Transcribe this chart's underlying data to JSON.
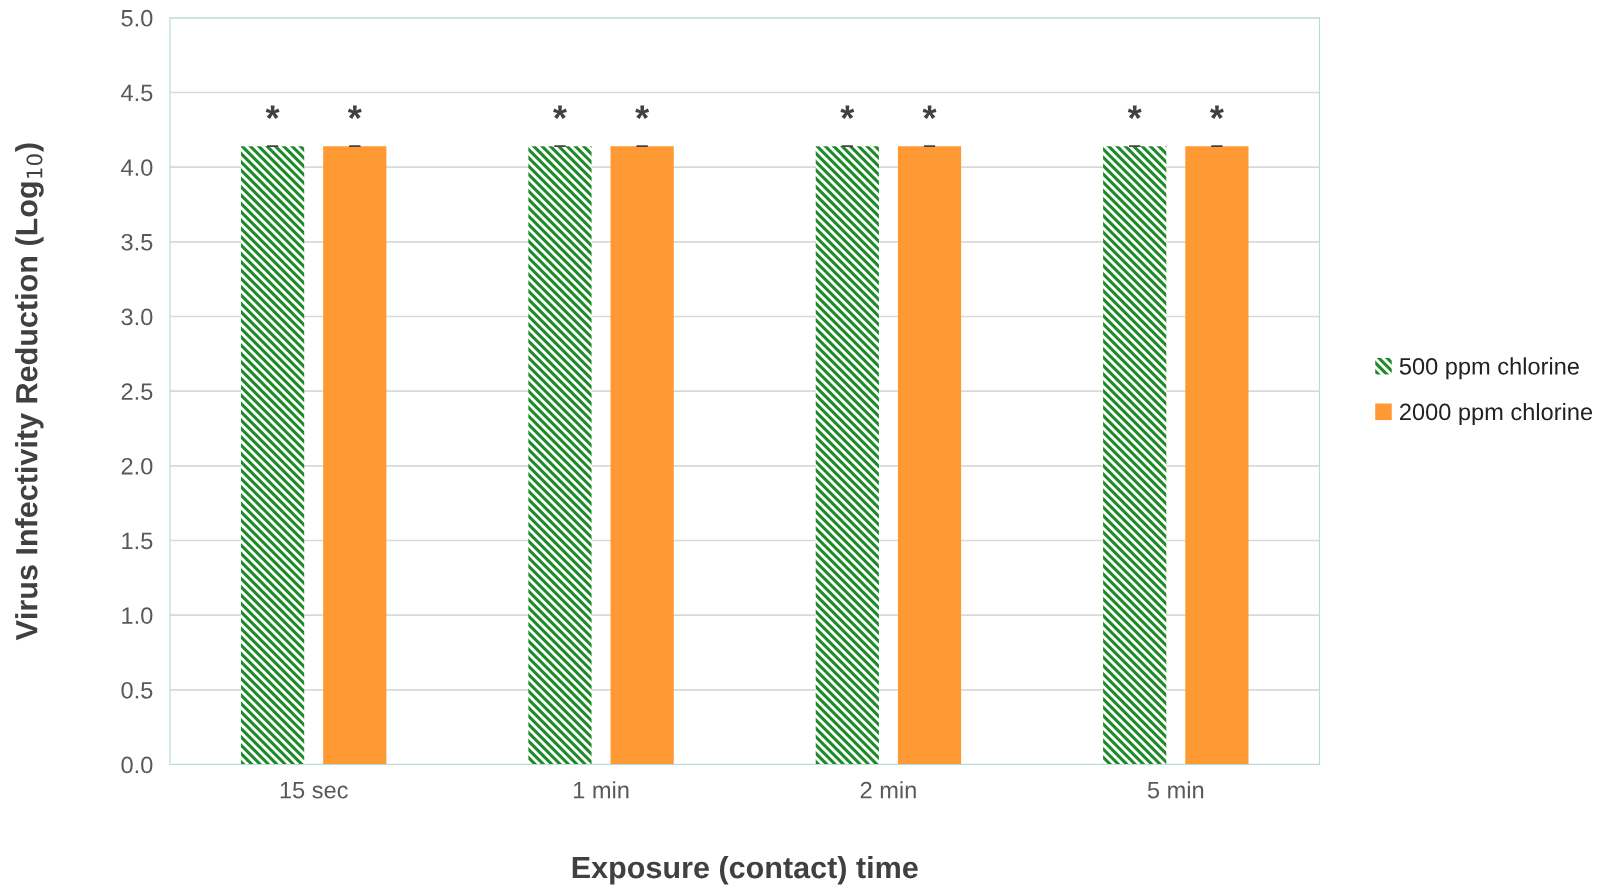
{
  "chart_data": {
    "type": "bar",
    "xlabel": "Exposure (contact) time",
    "ylabel": "Virus Infectivity Reduction (Log$_{10}$)",
    "categories": [
      "15 sec",
      "1 min",
      "2 min",
      "5 min"
    ],
    "series": [
      {
        "name": "500 ppm chlorine",
        "color": "#1f8a2a",
        "values": [
          4.14,
          4.14,
          4.14,
          4.14
        ],
        "errors": [
          0,
          0,
          0,
          0
        ]
      },
      {
        "name": "2000 ppm chlorine",
        "color": "#ff9933",
        "values": [
          4.14,
          4.14,
          4.14,
          4.14
        ],
        "errors": [
          0,
          0,
          0,
          0
        ]
      }
    ],
    "ylim": [
      0,
      5
    ],
    "yticks": [
      {
        "value": 0,
        "label": "0.0"
      },
      {
        "value": 0.5,
        "label": "0.5"
      },
      {
        "value": 1,
        "label": "1.0"
      },
      {
        "value": 1.5,
        "label": "1.5"
      },
      {
        "value": 2,
        "label": "2.0"
      },
      {
        "value": 2.5,
        "label": "2.5"
      },
      {
        "value": 3,
        "label": "3.0"
      },
      {
        "value": 3.5,
        "label": "3.5"
      },
      {
        "value": 4,
        "label": "4.0"
      },
      {
        "value": 4.5,
        "label": "4.5"
      },
      {
        "value": 5,
        "label": "5.0"
      }
    ],
    "grid": "y",
    "legend": "right",
    "annotations": [
      "*",
      "*",
      "*",
      "*",
      "*",
      "*",
      "*",
      "*"
    ]
  }
}
